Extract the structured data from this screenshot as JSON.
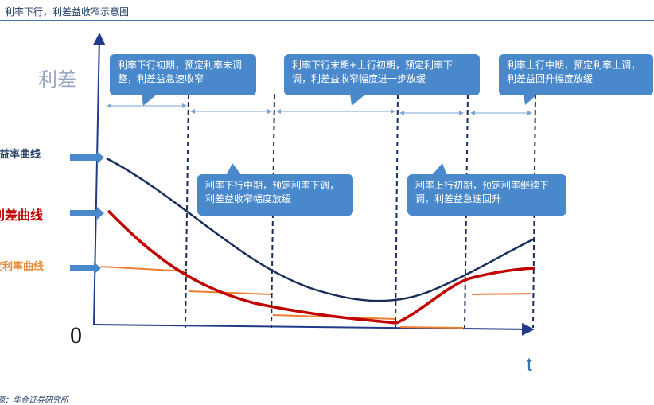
{
  "header": {
    "title": "利率下行，利差益收窄示意图"
  },
  "footer": {
    "source": "源：华金证券研究所"
  },
  "axes": {
    "y_label": "利差",
    "origin_label": "0",
    "x_label": "t"
  },
  "side_labels": {
    "yield": "收益率曲线",
    "spread": "利差曲线",
    "rate": "定利率曲线"
  },
  "callouts": {
    "c1": "利率下行初期，预定利率未调整，利差益急速收窄",
    "c2": "利率下行末期+上行初期，预定利率下调，利差益收窄幅度进一步放缓",
    "c3": "利率上行中期，预定利率上调，利差益回升幅度放缓",
    "c4": "利率下行中期，预定利率下调，利差益收窄幅度放缓",
    "c5": "利率上行初期，预定利率继续下调，利差益急速回升"
  },
  "colors": {
    "yield_curve": "#1a2e5c",
    "spread_curve": "#c00000",
    "predetermined_rate": "#ed7d31",
    "callout_bg": "#4a88cc",
    "axis": "#1f3b8a",
    "span_arrow": "#7aa6d6",
    "side_arrow": "#4a88cc"
  }
}
